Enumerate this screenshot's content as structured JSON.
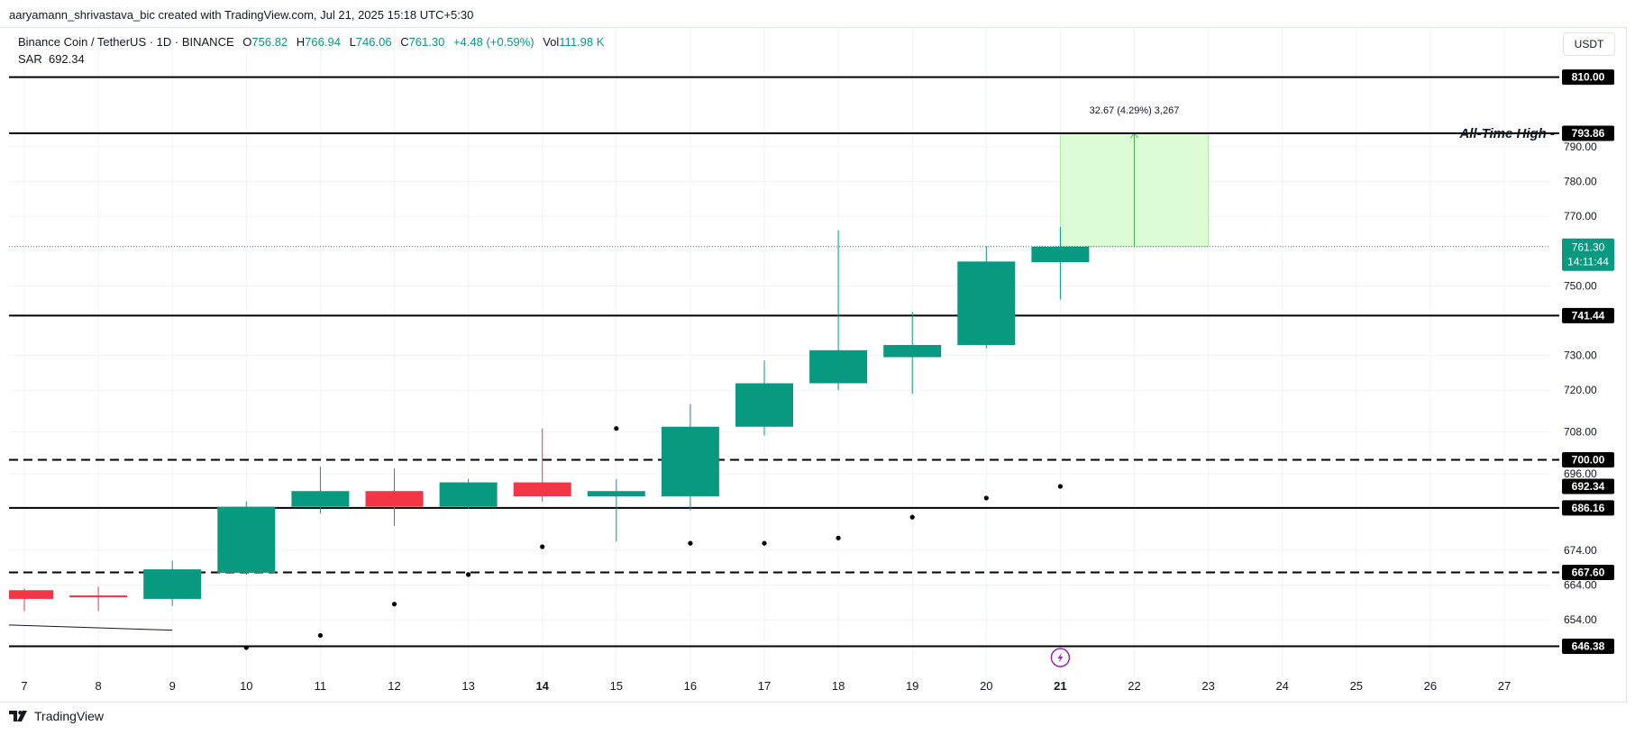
{
  "header": {
    "credit": "aaryamann_shrivastava_bic created with TradingView.com, Jul 21, 2025 15:18 UTC+5:30"
  },
  "legend": {
    "symbol": "Binance Coin / TetherUS · 1D · BINANCE",
    "open_label": "O",
    "open": "756.82",
    "high_label": "H",
    "high": "766.94",
    "low_label": "L",
    "low": "746.06",
    "close_label": "C",
    "close": "761.30",
    "change": "+4.48 (+0.59%)",
    "vol_label": "Vol",
    "vol": "111.98 K",
    "sar_label": "SAR",
    "sar": "692.34"
  },
  "currency": "USDT",
  "footer": {
    "brand": "TradingView"
  },
  "chart_data": {
    "type": "candlestick",
    "price_range": [
      641,
      818
    ],
    "y_ticks": [
      654,
      664,
      674,
      696,
      708,
      720,
      730,
      750,
      770,
      780,
      790
    ],
    "x_labels": [
      {
        "day": 7,
        "label": "7"
      },
      {
        "day": 8,
        "label": "8"
      },
      {
        "day": 9,
        "label": "9"
      },
      {
        "day": 10,
        "label": "10"
      },
      {
        "day": 11,
        "label": "11"
      },
      {
        "day": 12,
        "label": "12"
      },
      {
        "day": 13,
        "label": "13"
      },
      {
        "day": 14,
        "label": "14",
        "bold": true
      },
      {
        "day": 15,
        "label": "15"
      },
      {
        "day": 16,
        "label": "16"
      },
      {
        "day": 17,
        "label": "17"
      },
      {
        "day": 18,
        "label": "18"
      },
      {
        "day": 19,
        "label": "19"
      },
      {
        "day": 20,
        "label": "20"
      },
      {
        "day": 21,
        "label": "21",
        "bold": true
      },
      {
        "day": 22,
        "label": "22"
      },
      {
        "day": 23,
        "label": "23"
      },
      {
        "day": 24,
        "label": "24"
      },
      {
        "day": 25,
        "label": "25"
      },
      {
        "day": 26,
        "label": "26"
      },
      {
        "day": 27,
        "label": "27"
      }
    ],
    "candles": [
      {
        "day": 7,
        "open": 662.5,
        "high": 663.0,
        "low": 656.5,
        "close": 660.0
      },
      {
        "day": 8,
        "open": 661.0,
        "high": 663.5,
        "low": 656.5,
        "close": 660.5
      },
      {
        "day": 9,
        "open": 660.0,
        "high": 671.0,
        "low": 658.0,
        "close": 668.5
      },
      {
        "day": 10,
        "open": 667.5,
        "high": 688.0,
        "low": 667.0,
        "close": 686.5
      },
      {
        "day": 11,
        "open": 686.5,
        "high": 698.0,
        "low": 684.5,
        "close": 691.0
      },
      {
        "day": 12,
        "open": 691.0,
        "high": 697.5,
        "low": 681.0,
        "close": 686.5
      },
      {
        "day": 13,
        "open": 686.5,
        "high": 694.5,
        "low": 686.0,
        "close": 693.5
      },
      {
        "day": 14,
        "open": 693.5,
        "high": 709.0,
        "low": 688.0,
        "close": 689.5
      },
      {
        "day": 15,
        "open": 689.5,
        "high": 694.5,
        "low": 676.5,
        "close": 691.0
      },
      {
        "day": 16,
        "open": 689.5,
        "high": 716.0,
        "low": 685.5,
        "close": 709.5
      },
      {
        "day": 17,
        "open": 709.5,
        "high": 728.5,
        "low": 707.0,
        "close": 722.0
      },
      {
        "day": 18,
        "open": 722.0,
        "high": 766.0,
        "low": 720.0,
        "close": 731.5
      },
      {
        "day": 19,
        "open": 729.5,
        "high": 742.5,
        "low": 719.0,
        "close": 733.0
      },
      {
        "day": 20,
        "open": 733.0,
        "high": 761.5,
        "low": 732.0,
        "close": 757.0
      },
      {
        "day": 21,
        "open": 756.82,
        "high": 766.94,
        "low": 746.06,
        "close": 761.3
      }
    ],
    "sar": [
      {
        "day": 10,
        "value": 646.0
      },
      {
        "day": 11,
        "value": 649.5
      },
      {
        "day": 12,
        "value": 658.5
      },
      {
        "day": 13,
        "value": 667.0
      },
      {
        "day": 14,
        "value": 675.0
      },
      {
        "day": 15,
        "value": 709.0
      },
      {
        "day": 16,
        "value": 676.0
      },
      {
        "day": 17,
        "value": 676.0
      },
      {
        "day": 18,
        "value": 677.5
      },
      {
        "day": 19,
        "value": 683.5
      },
      {
        "day": 20,
        "value": 689.0
      },
      {
        "day": 21,
        "value": 692.34
      }
    ],
    "levels": [
      {
        "value": 810.0,
        "label": "810.00",
        "style": "solid"
      },
      {
        "value": 793.86,
        "label": "793.86",
        "style": "solid"
      },
      {
        "value": 741.44,
        "label": "741.44",
        "style": "solid"
      },
      {
        "value": 700.0,
        "label": "700.00",
        "style": "dashed"
      },
      {
        "value": 686.16,
        "label": "686.16",
        "style": "solid"
      },
      {
        "value": 667.6,
        "label": "667.60",
        "style": "dashed"
      },
      {
        "value": 646.38,
        "label": "646.38",
        "style": "solid"
      }
    ],
    "sar_tag": {
      "value": 692.34,
      "label": "692.34"
    },
    "last_price": {
      "value": 761.3,
      "label": "761.30",
      "countdown": "14:11:44"
    },
    "annotation": {
      "text": "All-Time High -",
      "value": 793.86
    },
    "measure": {
      "from_day": 21,
      "to_day": 23,
      "start": 761.3,
      "end": 793.86,
      "label": "32.67 (4.29%) 3,267"
    },
    "trend_line": [
      {
        "day": 7,
        "value": 652.5
      },
      {
        "day": 9,
        "value": 651.0
      }
    ],
    "event_marker_day": 21,
    "colors": {
      "up": "#089981",
      "down": "#f23645",
      "grid": "#f0f3fa",
      "measure_fill": "#dcfcd6",
      "measure_line": "#4caf50",
      "last_price": "#089981",
      "event": "#9c27b0"
    }
  }
}
